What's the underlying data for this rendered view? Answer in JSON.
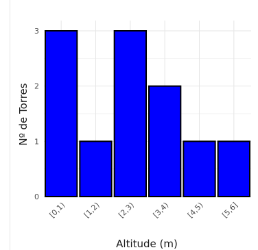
{
  "chart_data": {
    "type": "bar",
    "title": "",
    "xlabel": "Altitude (m)",
    "ylabel": "Nº de Torres",
    "categories": [
      "[0,1)",
      "[1,2)",
      "[2,3)",
      "[3,4)",
      "[4,5)",
      "[5,6]"
    ],
    "values": [
      3,
      1,
      3,
      2,
      1,
      1
    ],
    "ylim": [
      0,
      3
    ],
    "yticks": [
      0,
      1,
      2,
      3
    ],
    "grid": true,
    "colors": {
      "bar_fill": "#0000ff",
      "bar_stroke": "#000000"
    }
  }
}
